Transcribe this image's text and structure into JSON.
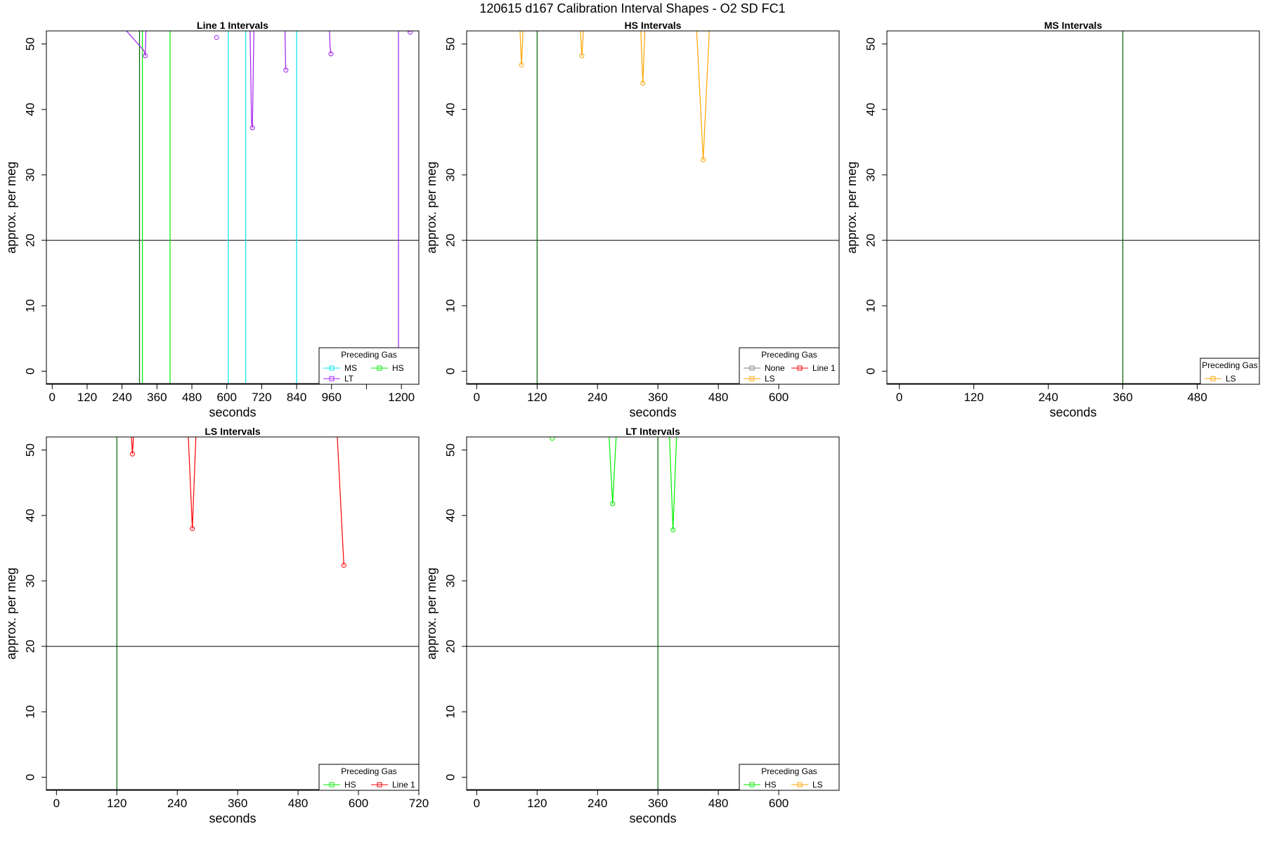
{
  "suptitle": "120615   d167   Calibration Interval Shapes - O2 SD FC1",
  "colors": {
    "MS": "#00e5ee",
    "HS": "#00ee00",
    "LT": "#a020f0",
    "LS": "#ffa500",
    "None": "#808080",
    "Line 1": "#ff0000",
    "reference": "#000000",
    "vertical_marker": "#006400"
  },
  "chart_data": [
    {
      "type": "line",
      "title": "Line 1 Intervals",
      "xlabel": "seconds",
      "ylabel": "approx. per meg",
      "xlim": [
        -20,
        1260
      ],
      "ylim": [
        -2,
        52
      ],
      "xticks": [
        0,
        120,
        240,
        360,
        480,
        600,
        720,
        840,
        960,
        1080,
        1200
      ],
      "xtick_labels": [
        "0",
        "120",
        "240",
        "360",
        "480",
        "600",
        "720",
        "840",
        "960",
        "",
        "1200"
      ],
      "yticks": [
        0,
        10,
        20,
        30,
        40,
        50
      ],
      "hline": 20,
      "vlines": [
        {
          "x": 300,
          "color": "vertical_marker"
        },
        {
          "x": 310,
          "color": "HS"
        },
        {
          "x": 405,
          "color": "HS"
        },
        {
          "x": 605,
          "color": "MS"
        },
        {
          "x": 665,
          "color": "MS"
        },
        {
          "x": 840,
          "color": "MS"
        },
        {
          "x": 1190,
          "color": "LT"
        }
      ],
      "series": [
        {
          "color": "LT",
          "x": [
            255,
            315,
            320,
            322
          ],
          "y": [
            52,
            49,
            48.2,
            52
          ]
        },
        {
          "color": "LT",
          "x": [
            565
          ],
          "y": [
            51
          ]
        },
        {
          "color": "LT",
          "x": [
            680,
            685,
            688,
            693
          ],
          "y": [
            52,
            38,
            37.2,
            52
          ]
        },
        {
          "color": "LT",
          "x": [
            800,
            802,
            803
          ],
          "y": [
            52,
            47,
            46
          ]
        },
        {
          "color": "LT",
          "x": [
            953,
            955,
            958
          ],
          "y": [
            52,
            49.5,
            48.5
          ]
        },
        {
          "color": "LT",
          "x": [
            1225,
            1230
          ],
          "y": [
            52,
            51.8
          ]
        }
      ],
      "legend": {
        "title": "Preceding Gas",
        "placement": "bottom-right",
        "entries": [
          "MS",
          "HS",
          "LT"
        ]
      }
    },
    {
      "type": "line",
      "title": "HS Intervals",
      "xlabel": "seconds",
      "ylabel": "approx. per meg",
      "xlim": [
        -20,
        720
      ],
      "ylim": [
        -2,
        52
      ],
      "xticks": [
        0,
        120,
        240,
        360,
        480,
        600
      ],
      "xtick_labels": [
        "0",
        "120",
        "240",
        "360",
        "480",
        "600"
      ],
      "yticks": [
        0,
        10,
        20,
        30,
        40,
        50
      ],
      "hline": 20,
      "vlines": [
        {
          "x": 120,
          "color": "vertical_marker"
        }
      ],
      "series": [
        {
          "color": "LS",
          "x": [
            86,
            89,
            92
          ],
          "y": [
            52,
            46.8,
            52
          ]
        },
        {
          "color": "LS",
          "x": [
            206,
            209,
            212
          ],
          "y": [
            52,
            48.2,
            52
          ]
        },
        {
          "color": "LS",
          "x": [
            326,
            330,
            334
          ],
          "y": [
            52,
            44,
            52
          ]
        },
        {
          "color": "LS",
          "x": [
            437,
            450,
            462
          ],
          "y": [
            52,
            32.3,
            52
          ]
        }
      ],
      "legend": {
        "title": "Preceding Gas",
        "placement": "bottom-right",
        "entries": [
          "None",
          "Line 1",
          "LS"
        ]
      }
    },
    {
      "type": "line",
      "title": "MS Intervals",
      "xlabel": "seconds",
      "ylabel": "approx. per meg",
      "xlim": [
        -20,
        580
      ],
      "ylim": [
        -2,
        52
      ],
      "xticks": [
        0,
        120,
        240,
        360,
        480
      ],
      "xtick_labels": [
        "0",
        "120",
        "240",
        "360",
        "480"
      ],
      "yticks": [
        0,
        10,
        20,
        30,
        40,
        50
      ],
      "hline": 20,
      "vlines": [
        {
          "x": 360,
          "color": "vertical_marker"
        }
      ],
      "series": [],
      "legend": {
        "title": "Preceding Gas",
        "placement": "bottom-right",
        "entries": [
          "LS"
        ]
      }
    },
    {
      "type": "line",
      "title": "LS Intervals",
      "xlabel": "seconds",
      "ylabel": "approx. per meg",
      "xlim": [
        -20,
        720
      ],
      "ylim": [
        -2,
        52
      ],
      "xticks": [
        0,
        120,
        240,
        360,
        480,
        600,
        720
      ],
      "xtick_labels": [
        "0",
        "120",
        "240",
        "360",
        "480",
        "600",
        "720"
      ],
      "yticks": [
        0,
        10,
        20,
        30,
        40,
        50
      ],
      "hline": 20,
      "vlines": [
        {
          "x": 120,
          "color": "vertical_marker"
        }
      ],
      "series": [
        {
          "color": "Line 1",
          "x": [
            149,
            151,
            153
          ],
          "y": [
            52,
            49.4,
            52
          ]
        },
        {
          "color": "Line 1",
          "x": [
            262,
            270,
            277
          ],
          "y": [
            52,
            38,
            52
          ]
        },
        {
          "color": "Line 1",
          "x": [
            558,
            571
          ],
          "y": [
            52,
            32.4
          ]
        }
      ],
      "legend": {
        "title": "Preceding Gas",
        "placement": "bottom-right",
        "entries": [
          "HS",
          "Line 1"
        ]
      }
    },
    {
      "type": "line",
      "title": "LT Intervals",
      "xlabel": "seconds",
      "ylabel": "approx. per meg",
      "xlim": [
        -20,
        720
      ],
      "ylim": [
        -2,
        52
      ],
      "xticks": [
        0,
        120,
        240,
        360,
        480,
        600
      ],
      "xtick_labels": [
        "0",
        "120",
        "240",
        "360",
        "480",
        "600"
      ],
      "yticks": [
        0,
        10,
        20,
        30,
        40,
        50
      ],
      "hline": 20,
      "vlines": [
        {
          "x": 360,
          "color": "vertical_marker"
        }
      ],
      "series": [
        {
          "color": "HS",
          "x": [
            150
          ],
          "y": [
            51.8
          ]
        },
        {
          "color": "HS",
          "x": [
            263,
            270,
            277
          ],
          "y": [
            52,
            41.8,
            52
          ]
        },
        {
          "color": "HS",
          "x": [
            383,
            390,
            397
          ],
          "y": [
            52,
            37.8,
            52
          ]
        }
      ],
      "legend": {
        "title": "Preceding Gas",
        "placement": "bottom-right",
        "entries": [
          "HS",
          "LS"
        ]
      }
    }
  ]
}
